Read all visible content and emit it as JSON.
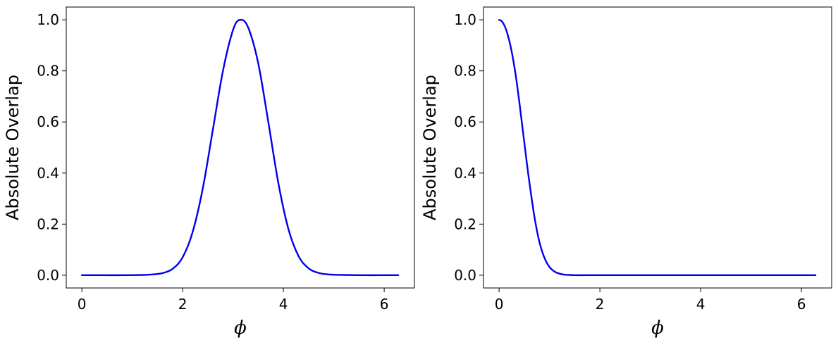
{
  "chart_data": [
    {
      "type": "line",
      "xlabel": "ϕ",
      "ylabel": "Absolute Overlap",
      "xlim": [
        -0.31,
        6.6
      ],
      "ylim": [
        -0.05,
        1.05
      ],
      "xticks": [
        0,
        2,
        4,
        6
      ],
      "yticks": [
        0.0,
        0.2,
        0.4,
        0.6,
        0.8,
        1.0
      ],
      "xtick_labels": [
        "0",
        "2",
        "4",
        "6"
      ],
      "ytick_labels": [
        "0.0",
        "0.2",
        "0.4",
        "0.6",
        "0.8",
        "1.0"
      ],
      "grid": false,
      "series": [
        {
          "color": "#0000ee",
          "x": [
            0,
            0.4,
            0.8,
            1.2,
            1.4,
            1.6,
            1.8,
            2.0,
            2.2,
            2.4,
            2.6,
            2.8,
            3.0,
            3.14,
            3.3,
            3.5,
            3.7,
            3.9,
            4.1,
            4.3,
            4.5,
            4.7,
            4.9,
            5.2,
            5.6,
            6.0,
            6.28
          ],
          "y": [
            0.0,
            0.0,
            0.0,
            0.001,
            0.003,
            0.008,
            0.025,
            0.07,
            0.17,
            0.34,
            0.57,
            0.8,
            0.96,
            1.0,
            0.97,
            0.83,
            0.6,
            0.36,
            0.18,
            0.075,
            0.027,
            0.009,
            0.003,
            0.001,
            0.0,
            0.0,
            0.0
          ]
        }
      ]
    },
    {
      "type": "line",
      "xlabel": "ϕ",
      "ylabel": "Absolute Overlap",
      "xlim": [
        -0.31,
        6.6
      ],
      "ylim": [
        -0.05,
        1.05
      ],
      "xticks": [
        0,
        2,
        4,
        6
      ],
      "yticks": [
        0.0,
        0.2,
        0.4,
        0.6,
        0.8,
        1.0
      ],
      "xtick_labels": [
        "0",
        "2",
        "4",
        "6"
      ],
      "ytick_labels": [
        "0.0",
        "0.2",
        "0.4",
        "0.6",
        "0.8",
        "1.0"
      ],
      "grid": false,
      "series": [
        {
          "color": "#0000ee",
          "x": [
            0,
            0.05,
            0.1,
            0.15,
            0.2,
            0.25,
            0.3,
            0.35,
            0.4,
            0.45,
            0.5,
            0.55,
            0.6,
            0.7,
            0.8,
            0.9,
            1.0,
            1.1,
            1.2,
            1.3,
            1.4,
            1.5,
            1.7,
            2.0,
            3.0,
            4.0,
            5.0,
            6.28
          ],
          "y": [
            1.0,
            0.995,
            0.98,
            0.955,
            0.92,
            0.875,
            0.82,
            0.755,
            0.68,
            0.6,
            0.52,
            0.44,
            0.365,
            0.23,
            0.13,
            0.068,
            0.032,
            0.014,
            0.006,
            0.002,
            0.001,
            0.0,
            0.0,
            0.0,
            0.0,
            0.0,
            0.0,
            0.0
          ]
        }
      ]
    }
  ]
}
